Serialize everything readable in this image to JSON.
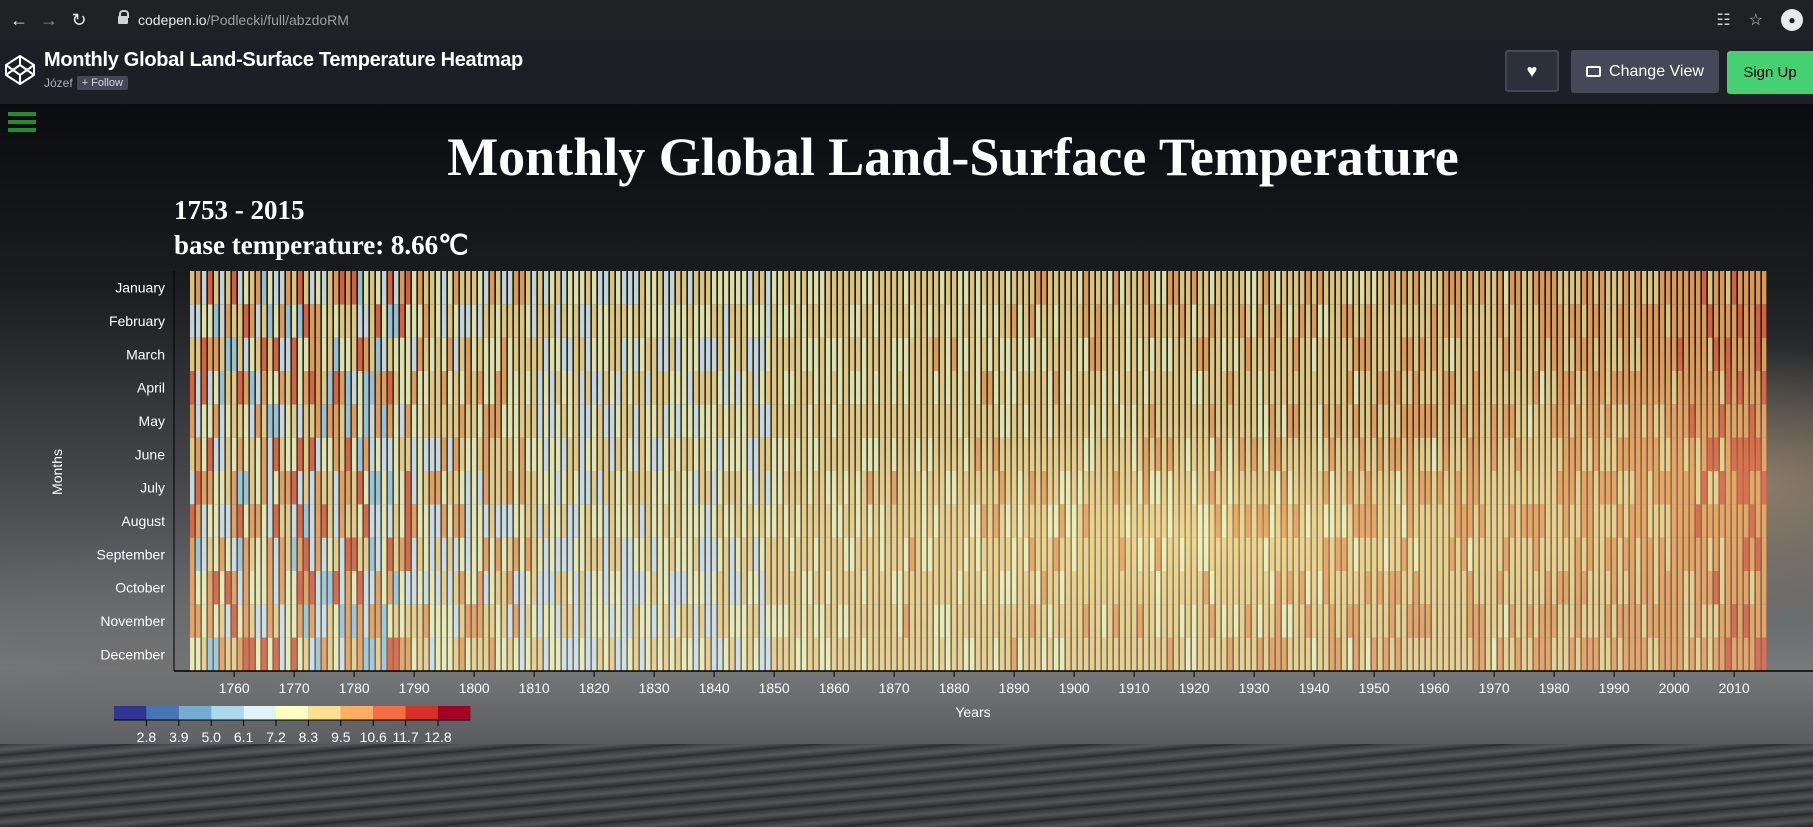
{
  "browser": {
    "url_host": "codepen.io",
    "url_path": "/Podlecki/full/abzdoRM"
  },
  "codepen": {
    "pen_title": "Monthly Global Land-Surface Temperature Heatmap",
    "author": "Józef",
    "follow_label": "+ Follow",
    "change_view_label": "Change View",
    "signup_label": "Sign Up"
  },
  "chart_data": {
    "type": "heatmap",
    "title": "Monthly Global Land-Surface Temperature",
    "subtitle_years": "1753 - 2015",
    "subtitle_base": "base temperature: 8.66℃",
    "xlabel": "Years",
    "ylabel": "Months",
    "base_temperature": 8.66,
    "year_range": [
      1753,
      2015
    ],
    "months": [
      "January",
      "February",
      "March",
      "April",
      "May",
      "June",
      "July",
      "August",
      "September",
      "October",
      "November",
      "December"
    ],
    "x_ticks": [
      1760,
      1770,
      1780,
      1790,
      1800,
      1810,
      1820,
      1830,
      1840,
      1850,
      1860,
      1870,
      1880,
      1890,
      1900,
      1910,
      1920,
      1930,
      1940,
      1950,
      1960,
      1970,
      1980,
      1990,
      2000,
      2010
    ],
    "legend_ticks": [
      "2.8",
      "3.9",
      "5.0",
      "6.1",
      "7.2",
      "8.3",
      "9.5",
      "10.6",
      "11.7",
      "12.8"
    ],
    "legend_colors": [
      "#313695",
      "#4575b4",
      "#74add1",
      "#abd9e9",
      "#e0f3f8",
      "#ffffbf",
      "#fee090",
      "#fdae61",
      "#f46d43",
      "#d73027",
      "#a50026"
    ],
    "trend": "early years (1753-1830) mixed cold/warm with high variance; 1830-1850 cooler blues; 1850-1980 mostly pale yellow near base; 1980-2015 increasingly warm orange/red"
  }
}
